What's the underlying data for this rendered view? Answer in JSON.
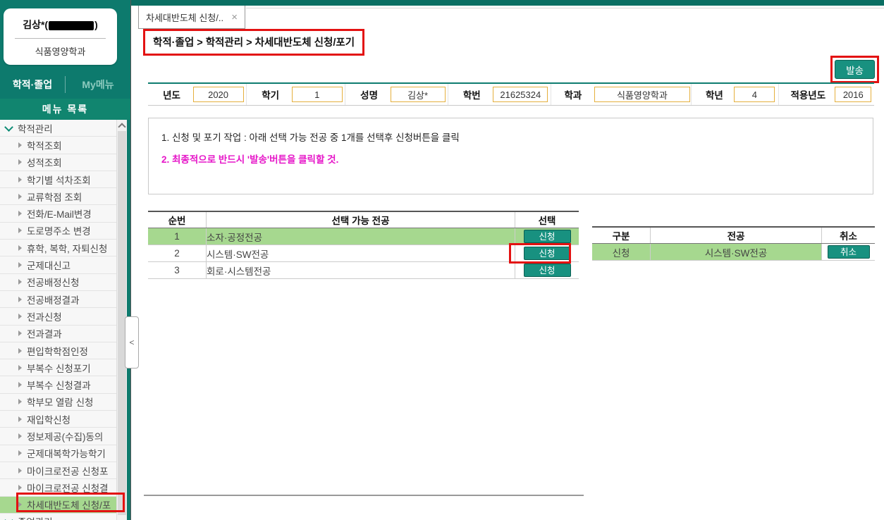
{
  "colors": {
    "teal_top_bar": "#0a6f63",
    "teal_sidebar": "#0d7a6d",
    "teal_button": "#189180",
    "green_highlight": "#a6d88f",
    "red_annotation": "#e31212",
    "magenta_text": "#e616c8",
    "input_border": "#e5af3d"
  },
  "sidebar": {
    "user": {
      "name_open": "김상*(",
      "name_close": ")",
      "department": "식품영양학과"
    },
    "tabs": [
      {
        "label": "학적·졸업"
      },
      {
        "label": "My메뉴"
      }
    ],
    "menu_header": "메뉴 목록",
    "collapse_arrow": "<",
    "menu": [
      {
        "label": "학적관리",
        "type": "group"
      },
      {
        "label": "학적조회"
      },
      {
        "label": "성적조회"
      },
      {
        "label": "학기별 석차조회"
      },
      {
        "label": "교류학점 조회"
      },
      {
        "label": "전화/E-Mail변경"
      },
      {
        "label": "도로명주소 변경"
      },
      {
        "label": "휴학, 복학, 자퇴신청"
      },
      {
        "label": "군제대신고"
      },
      {
        "label": "전공배정신청"
      },
      {
        "label": "전공배정결과"
      },
      {
        "label": "전과신청"
      },
      {
        "label": "전과결과"
      },
      {
        "label": "편입학학점인정"
      },
      {
        "label": "부복수 신청포기"
      },
      {
        "label": "부복수 신청결과"
      },
      {
        "label": "학부모 열람 신청"
      },
      {
        "label": "재입학신청"
      },
      {
        "label": "정보제공(수집)동의"
      },
      {
        "label": "군제대복학가능학기"
      },
      {
        "label": "마이크로전공 신청포"
      },
      {
        "label": "마이크로전공 신청결"
      },
      {
        "label": "차세대반도체 신청/포",
        "highlighted": true
      },
      {
        "label": "졸업관리",
        "type": "group"
      }
    ]
  },
  "content": {
    "tab": {
      "title": "차세대반도체 신청/..",
      "close_icon": "×"
    },
    "breadcrumb": "학적·졸업 > 학적관리 > 차세대반도체 신청/포기",
    "send_button": "발송",
    "form_fields": [
      {
        "label": "년도",
        "value": "2020",
        "label_w": 60,
        "input_w": 72
      },
      {
        "label": "학기",
        "value": "1",
        "label_w": 60,
        "input_w": 72
      },
      {
        "label": "성명",
        "value": "김상*",
        "label_w": 60,
        "input_w": 78
      },
      {
        "label": "학번",
        "value": "21625324",
        "label_w": 60,
        "input_w": 78
      },
      {
        "label": "학과",
        "value": "식품영양학과",
        "label_w": 60,
        "input_w": 136
      },
      {
        "label": "학년",
        "value": "4",
        "label_w": 56,
        "input_w": 58
      },
      {
        "label": "적용년도",
        "value": "2016",
        "label_w": 76,
        "input_w": 52
      }
    ],
    "instructions": {
      "line1": "1. 신청 및 포기 작업 : 아래 선택 가능 전공 중 1개를 선택후 신청버튼을 클릭",
      "line2": "2. 최종적으로 반드시 '발송'버튼을 클릭할 것."
    },
    "available_majors": {
      "headers": [
        "순번",
        "선택 가능 전공",
        "선택"
      ],
      "action_label": "신청",
      "rows": [
        {
          "no": "1",
          "major": "소자·공정전공",
          "highlighted": true
        },
        {
          "no": "2",
          "major": "시스템·SW전공",
          "annotated": true
        },
        {
          "no": "3",
          "major": "회로·시스템전공"
        }
      ]
    },
    "applied_major": {
      "headers": [
        "구분",
        "전공",
        "취소"
      ],
      "rows": [
        {
          "type": "신청",
          "major": "시스템·SW전공",
          "action": "취소"
        }
      ]
    }
  }
}
